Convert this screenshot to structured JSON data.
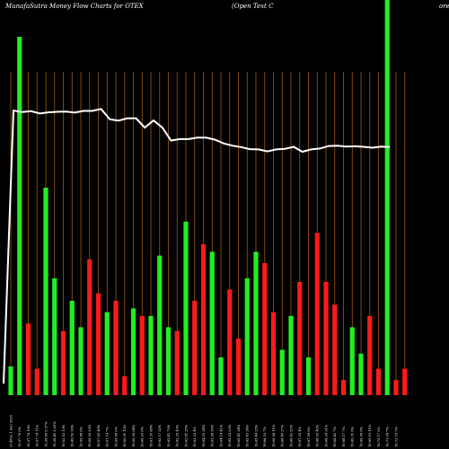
{
  "chart_data": {
    "type": "bar",
    "title_left": "MunafaSutra  Money Flow  Charts for OTEX",
    "title_mid": "(Open  Text  C",
    "title_right": "ore",
    "xlabel": "",
    "ylabel": "",
    "grid": "vertical",
    "colors": {
      "up": "#22ee22",
      "down": "#ff1a1a",
      "grid": "#a05a10",
      "line": "#ffffff",
      "background": "#000000"
    },
    "categories": [
      "Tue 17 Dec 24",
      "Fri 19 Dec 24",
      "Tue 24 Dec 24",
      "Thu 26 Dec 24",
      "Fri 27 Dec 24",
      "Mon 30 Dec 24",
      "Tue 31 Dec 24",
      "Thu 02 Jan 25",
      "Fri 03 Jan 25",
      "Mon 06 Jan 25",
      "Tue 07 Jan 25",
      "Wed 08 Jan 25",
      "Fri 10 Jan 25",
      "Mon 13 Jan 25",
      "Tue 14 Jan 25",
      "Wed 15 Jan 25",
      "Thu 16 Jan 25",
      "Fri 17 Jan 25",
      "Tue 21 Jan 25",
      "Wed 22 Jan 25",
      "Thu 23 Jan 25",
      "Fri 24 Jan 25",
      "Mon 27 Jan 25",
      "Tue 28 Jan 25",
      "Wed 29 Jan 25",
      "Thu 30 Jan 25",
      "Fri 31 Jan 25",
      "Mon 03 Feb 25",
      "Tue 04 Feb 25",
      "Wed 05 Feb 25",
      "Thu 06 Feb 25",
      "Fri 07 Feb 25",
      "Mon 10 Feb 25",
      "Tue 11 Feb 25",
      "Wed 12 Feb 25",
      "Thu 13 Feb 25",
      "Fri 14 Feb 25",
      "Tue 18 Feb 25",
      "Wed 19 Feb 25",
      "Thu 20 Feb 25",
      "Fri 21 Feb 25",
      "Mon 24 Feb 25",
      "Tue 25 Feb 25",
      "Wed 26 Feb 25",
      "Thu 27 Feb 25"
    ],
    "tick_labels": [
      "(3.45%) 1 Dec 2025",
      "19:37.76 0%",
      "19:37.78 16%",
      "19:37.74 11%",
      "19:38.80 0.37%",
      "19:38.41 3.25%",
      "19:52.52 13%",
      "19:49.50 26%",
      "19:55.88 0%",
      "19:56.20 23%",
      "19:57.65 48%",
      "19:57.14 7%",
      "19:59.88 0%",
      "19:59.91 12%",
      "19:59.95 54%",
      "19:60.20 0%",
      "19:61.35 88%",
      "19:62.17 22%",
      "19:62.41 79%",
      "19:62.25 43%",
      "19:62.81 25%",
      "19:63.20 4%",
      "19:64.29 34%",
      "19:63.96 30%",
      "19:64.18 41%",
      "19:65.24 23%",
      "19:65.41 24%",
      "19:65.43 24%",
      "19:65.44 25%",
      "19:66.53 7%",
      "19:66.58 11%",
      "19:66.45 27%",
      "19:66.42 22%",
      "19:67.20 4%",
      "19:67.26 0%",
      "19:68.03 42%",
      "19:68.24 31%",
      "19:68.42 7%",
      "19:68.17 7%",
      "19:69.31 0%",
      "19:69.08 9%",
      "19:69.10 11%",
      "19:70.17 0%",
      "19:71.04 7%",
      "19:72.16 7%"
    ],
    "bar_values": [
      7.6,
      95,
      19,
      7.0,
      55,
      31,
      17,
      25,
      18,
      36,
      27,
      22,
      25,
      5,
      23,
      21,
      21,
      37,
      18,
      17,
      46,
      25,
      40,
      38,
      10,
      28,
      15,
      31,
      38,
      35,
      22,
      12,
      21,
      30,
      10,
      43,
      30,
      24,
      4,
      18,
      11,
      21,
      7,
      100,
      4,
      7
    ],
    "bar_colors": [
      "green",
      "green",
      "red",
      "red",
      "green",
      "green",
      "red",
      "green",
      "green",
      "red",
      "red",
      "green",
      "red",
      "red",
      "green",
      "red",
      "green",
      "green",
      "green",
      "red",
      "green",
      "red",
      "red",
      "green",
      "green",
      "red",
      "red",
      "green",
      "green",
      "red",
      "red",
      "green",
      "green",
      "red",
      "green",
      "red",
      "red",
      "red",
      "red",
      "green",
      "green",
      "red",
      "red",
      "green",
      "red",
      "red"
    ],
    "bar_extra": {
      "up_extra_bar_index": 43
    },
    "line_values": [
      4,
      99,
      98.5,
      98.8,
      98,
      98.4,
      98.6,
      98.7,
      98.3,
      98.9,
      98.9,
      99.6,
      96,
      95.5,
      96.3,
      96.3,
      93.1,
      95.6,
      93.1,
      88.6,
      89.1,
      89.1,
      89.6,
      89.6,
      88.9,
      87.6,
      86.8,
      86.3,
      85.6,
      85.5,
      84.8,
      85.5,
      85.7,
      86.4,
      84.7,
      85.5,
      85.8,
      86.7,
      86.8,
      86.5,
      86.6,
      86.4,
      86.1,
      86.5,
      86.3
    ],
    "ylim": [
      0,
      100
    ]
  }
}
